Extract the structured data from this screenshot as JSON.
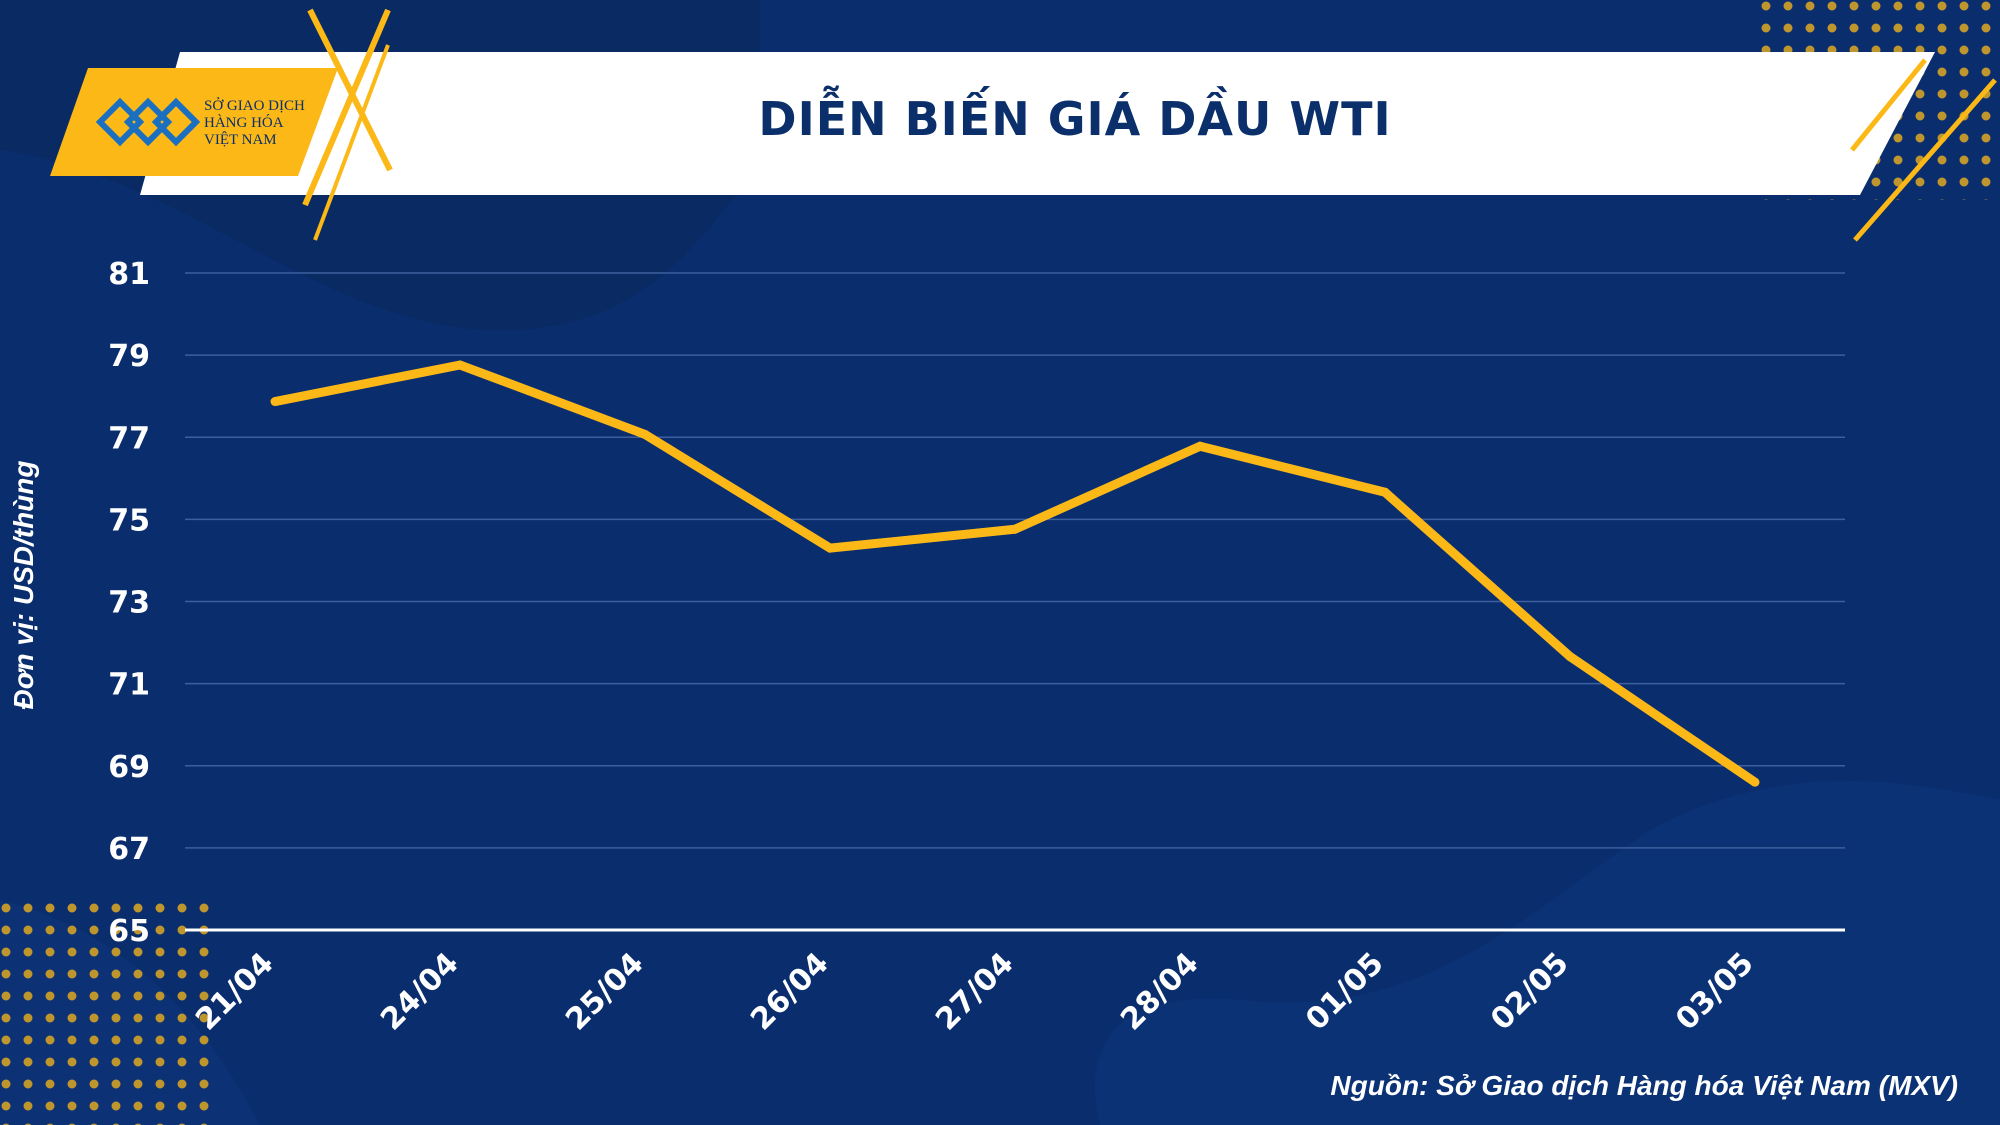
{
  "colors": {
    "background": "#0a2d6e",
    "line": "#fbb817",
    "banner": "#ffffff",
    "title": "#0b2f6b",
    "accent": "#fbb817"
  },
  "logo": {
    "line1": "SỞ GIAO DỊCH",
    "line2": "HÀNG HÓA",
    "line3": "VIỆT NAM"
  },
  "source": "Nguồn: Sở Giao dịch Hàng hóa Việt Nam (MXV)",
  "chart_data": {
    "type": "line",
    "title": "DIỄN BIẾN GIÁ DẦU WTI",
    "ylabel": "Đơn vị: USD/thùng",
    "xlabel": "",
    "ylim": [
      65,
      81
    ],
    "yticks": [
      65,
      67,
      69,
      71,
      73,
      75,
      77,
      79,
      81
    ],
    "grid": true,
    "categories": [
      "21/04",
      "24/04",
      "25/04",
      "26/04",
      "27/04",
      "28/04",
      "01/05",
      "02/05",
      "03/05"
    ],
    "series": [
      {
        "values": [
          77.87,
          78.76,
          77.07,
          74.3,
          74.76,
          76.78,
          75.66,
          71.66,
          68.6
        ]
      }
    ]
  }
}
